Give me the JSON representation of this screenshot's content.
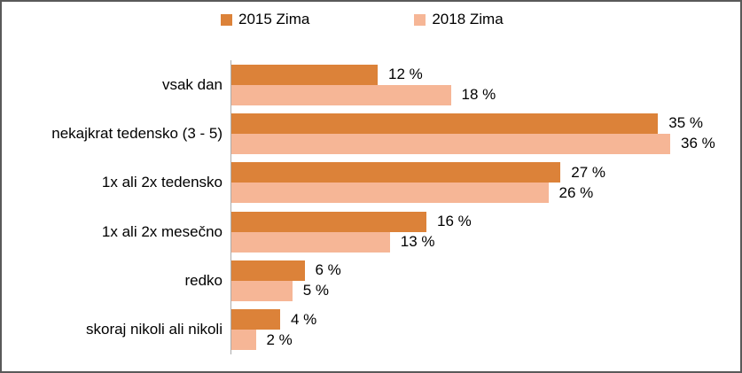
{
  "chart_data": {
    "type": "bar",
    "orientation": "horizontal",
    "title": "",
    "xlabel": "",
    "ylabel": "",
    "xlim": [
      0,
      40
    ],
    "grid": false,
    "legend_position": "top",
    "axis_line_color": "#ababab",
    "categories": [
      "vsak dan",
      "nekajkrat tedensko (3 - 5)",
      "1x ali 2x tedensko",
      "1x ali 2x mesečno",
      "redko",
      "skoraj nikoli ali nikoli"
    ],
    "series": [
      {
        "name": "2015 Zima",
        "color": "#DC8239",
        "values": [
          12,
          35,
          27,
          16,
          6,
          4
        ],
        "labels": [
          "12 %",
          "35 %",
          "27 %",
          "16 %",
          "6 %",
          "4 %"
        ]
      },
      {
        "name": "2018 Zima",
        "color": "#F6B696",
        "values": [
          18,
          36,
          26,
          13,
          5,
          2
        ],
        "labels": [
          "18 %",
          "36 %",
          "26 %",
          "13 %",
          "5 %",
          "2 %"
        ]
      }
    ]
  }
}
